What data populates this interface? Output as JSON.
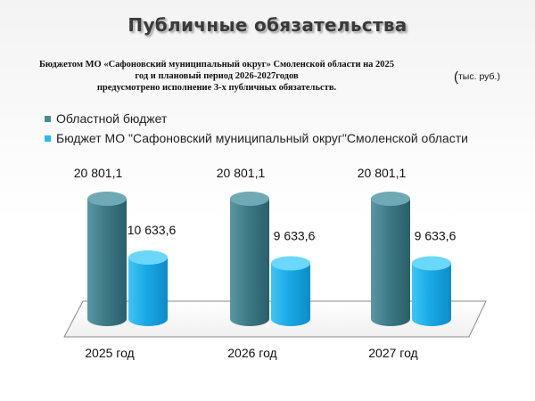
{
  "title": "Публичные обязательства",
  "subtitle_lines": [
    "Бюджетом МО «Сафоновский муниципальный округ» Смоленской области на 2025",
    "год и плановый период 2026-2027годов",
    "предусмотрено исполнение 3-х публичных обязательств."
  ],
  "units": {
    "open": "(",
    "text": "тыс. руб.)"
  },
  "chart_data": {
    "type": "bar",
    "categories": [
      "2025 год",
      "2026 год",
      "2027 год"
    ],
    "series": [
      {
        "name": "Областной бюджет",
        "values": [
          20801.1,
          20801.1,
          20801.1
        ],
        "labels": [
          "20 801,1",
          "20 801,1",
          "20 801,1"
        ],
        "color": "#4a8a96"
      },
      {
        "name": "Бюджет МО \"Сафоновский муниципальный округ\"Смоленской области",
        "values": [
          10633.6,
          9633.6,
          9633.6
        ],
        "labels": [
          "10 633,6",
          "9 633,6",
          "9 633,6"
        ],
        "color": "#29b8ee"
      }
    ],
    "style": "3d-cylinder",
    "legend_position": "top-left"
  }
}
